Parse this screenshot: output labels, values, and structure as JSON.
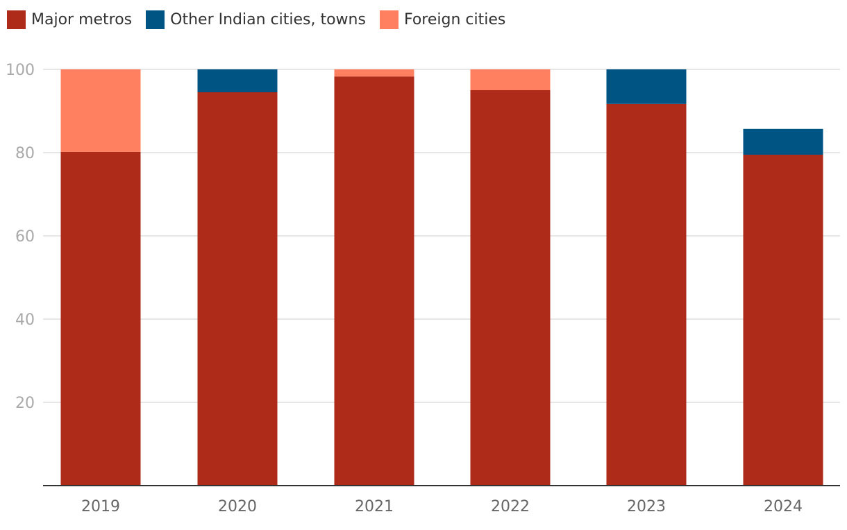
{
  "chart_data": {
    "type": "bar",
    "stacked": true,
    "categories": [
      "2019",
      "2020",
      "2021",
      "2022",
      "2023",
      "2024"
    ],
    "series": [
      {
        "name": "Major metros",
        "color": "#ae2b1a",
        "values": [
          80.2,
          94.5,
          98.3,
          95.0,
          91.7,
          79.5
        ]
      },
      {
        "name": "Other Indian cities, towns",
        "color": "#005483",
        "values": [
          0,
          5.5,
          0,
          0,
          8.3,
          6.2
        ]
      },
      {
        "name": "Foreign cities",
        "color": "#ff8060",
        "values": [
          19.8,
          0,
          1.7,
          5.0,
          0,
          0
        ]
      }
    ],
    "ylim": [
      0,
      100
    ],
    "yticks": [
      20,
      40,
      60,
      80,
      100
    ],
    "grid": true,
    "legend": "top-left",
    "title": "",
    "xlabel": "",
    "ylabel": ""
  }
}
